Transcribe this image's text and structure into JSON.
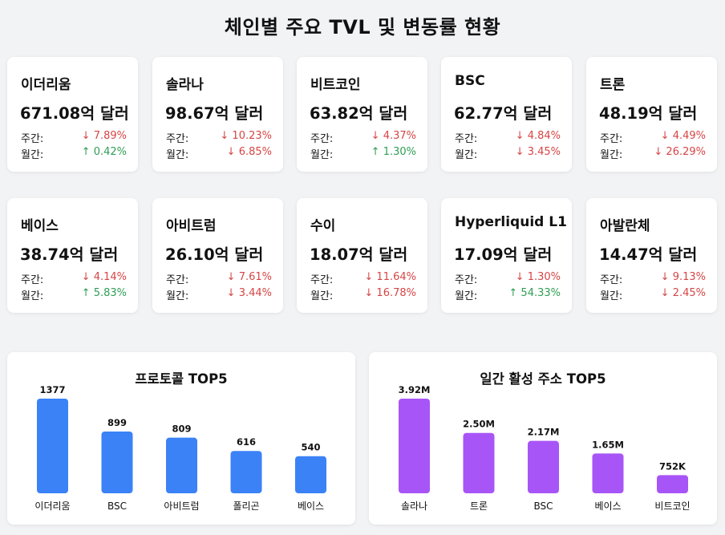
{
  "page": {
    "title": "체인별 주요 TVL 및 변동률 현황"
  },
  "labels": {
    "weekly": "주간:",
    "monthly": "월간:"
  },
  "chains": [
    {
      "name": "이더리움",
      "tvl": "671.08억 달러",
      "weekly": {
        "dir": "down",
        "text": "↓ 7.89%"
      },
      "monthly": {
        "dir": "up",
        "text": "↑ 0.42%"
      }
    },
    {
      "name": "솔라나",
      "tvl": "98.67억 달러",
      "weekly": {
        "dir": "down",
        "text": "↓ 10.23%"
      },
      "monthly": {
        "dir": "down",
        "text": "↓ 6.85%"
      }
    },
    {
      "name": "비트코인",
      "tvl": "63.82억 달러",
      "weekly": {
        "dir": "down",
        "text": "↓ 4.37%"
      },
      "monthly": {
        "dir": "up",
        "text": "↑ 1.30%"
      }
    },
    {
      "name": "BSC",
      "tvl": "62.77억 달러",
      "weekly": {
        "dir": "down",
        "text": "↓ 4.84%"
      },
      "monthly": {
        "dir": "down",
        "text": "↓ 3.45%"
      }
    },
    {
      "name": "트론",
      "tvl": "48.19억 달러",
      "weekly": {
        "dir": "down",
        "text": "↓ 4.49%"
      },
      "monthly": {
        "dir": "down",
        "text": "↓ 26.29%"
      }
    },
    {
      "name": "베이스",
      "tvl": "38.74억 달러",
      "weekly": {
        "dir": "down",
        "text": "↓ 4.14%"
      },
      "monthly": {
        "dir": "up",
        "text": "↑ 5.83%"
      }
    },
    {
      "name": "아비트럼",
      "tvl": "26.10억 달러",
      "weekly": {
        "dir": "down",
        "text": "↓ 7.61%"
      },
      "monthly": {
        "dir": "down",
        "text": "↓ 3.44%"
      }
    },
    {
      "name": "수이",
      "tvl": "18.07억 달러",
      "weekly": {
        "dir": "down",
        "text": "↓ 11.64%"
      },
      "monthly": {
        "dir": "down",
        "text": "↓ 16.78%"
      }
    },
    {
      "name": "Hyperliquid L1",
      "tvl": "17.09억 달러",
      "weekly": {
        "dir": "down",
        "text": "↓ 1.30%"
      },
      "monthly": {
        "dir": "up",
        "text": "↑ 54.33%"
      }
    },
    {
      "name": "아발란체",
      "tvl": "14.47억 달러",
      "weekly": {
        "dir": "down",
        "text": "↓ 9.13%"
      },
      "monthly": {
        "dir": "down",
        "text": "↓ 2.45%"
      }
    }
  ],
  "colors": {
    "down": "#d64545",
    "up": "#2f9e54"
  },
  "chart_data": [
    {
      "type": "bar",
      "title": "프로토콜 TOP5",
      "categories": [
        "이더리움",
        "BSC",
        "아비트럼",
        "폴리곤",
        "베이스"
      ],
      "values": [
        1377,
        899,
        809,
        616,
        540
      ],
      "value_labels": [
        "1377",
        "899",
        "809",
        "616",
        "540"
      ],
      "color": "#3b82f6"
    },
    {
      "type": "bar",
      "title": "일간 활성 주소 TOP5",
      "categories": [
        "솔라나",
        "트론",
        "BSC",
        "베이스",
        "비트코인"
      ],
      "values": [
        3.92,
        2.5,
        2.17,
        1.65,
        0.752
      ],
      "value_labels": [
        "3.92M",
        "2.50M",
        "2.17M",
        "1.65M",
        "752K"
      ],
      "color": "#a855f7"
    }
  ]
}
